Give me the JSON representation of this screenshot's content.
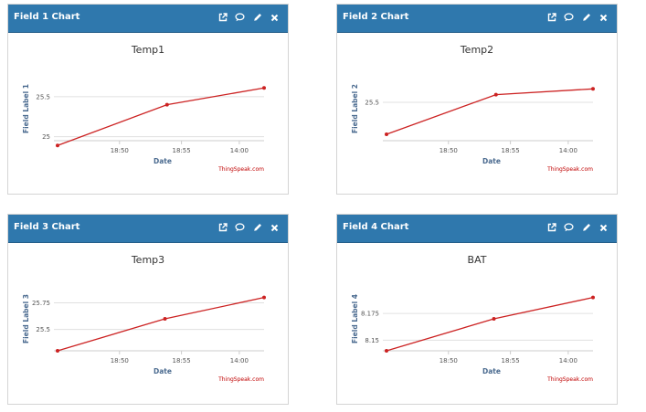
{
  "colors": {
    "header": "#2f78ad",
    "line": "#cc2222",
    "grid": "#e0e0e0",
    "credit": "#c00000"
  },
  "header_icons": [
    "external-link-icon",
    "comment-icon",
    "pencil-icon",
    "close-icon"
  ],
  "widgets": [
    {
      "header_title": "Field 1 Chart",
      "chart_data": {
        "type": "line",
        "title": "Temp1",
        "xlabel": "Date",
        "ylabel": "Field Label 1",
        "credit": "ThingSpeak.com",
        "x_ticks": [
          "18:50",
          "18:55",
          "14:00"
        ],
        "y_ticks": [
          {
            "label": "25",
            "value": 25.0
          },
          {
            "label": "25.5",
            "value": 25.5
          }
        ],
        "ylim": [
          24.95,
          25.75
        ],
        "series": [
          {
            "points": [
              [
                0,
                24.89
              ],
              [
                0.53,
                25.4
              ],
              [
                1,
                25.61
              ]
            ]
          }
        ]
      }
    },
    {
      "header_title": "Field 2 Chart",
      "chart_data": {
        "type": "line",
        "title": "Temp2",
        "xlabel": "Date",
        "ylabel": "Field Label 2",
        "credit": "ThingSpeak.com",
        "x_ticks": [
          "18:50",
          "18:55",
          "14:00"
        ],
        "y_ticks": [
          {
            "label": "25.5",
            "value": 25.5
          }
        ],
        "ylim": [
          24.9,
          25.9
        ],
        "series": [
          {
            "points": [
              [
                0,
                25.0
              ],
              [
                0.53,
                25.62
              ],
              [
                1,
                25.71
              ]
            ]
          }
        ]
      }
    },
    {
      "header_title": "Field 3 Chart",
      "chart_data": {
        "type": "line",
        "title": "Temp3",
        "xlabel": "Date",
        "ylabel": "Field Label 3",
        "credit": "ThingSpeak.com",
        "x_ticks": [
          "18:50",
          "18:55",
          "14:00"
        ],
        "y_ticks": [
          {
            "label": "25.5",
            "value": 25.5
          },
          {
            "label": "25.75",
            "value": 25.75
          }
        ],
        "ylim": [
          25.3,
          25.9
        ],
        "series": [
          {
            "points": [
              [
                0,
                25.3
              ],
              [
                0.52,
                25.6
              ],
              [
                1,
                25.8
              ]
            ]
          }
        ]
      }
    },
    {
      "header_title": "Field 4 Chart",
      "chart_data": {
        "type": "line",
        "title": "BAT",
        "xlabel": "Date",
        "ylabel": "Field Label 4",
        "credit": "ThingSpeak.com",
        "x_ticks": [
          "18:50",
          "18:55",
          "14:00"
        ],
        "y_ticks": [
          {
            "label": "8.15",
            "value": 8.15
          },
          {
            "label": "8.175",
            "value": 8.175
          }
        ],
        "ylim": [
          8.14,
          8.2
        ],
        "series": [
          {
            "points": [
              [
                0,
                8.14
              ],
              [
                0.52,
                8.17
              ],
              [
                1,
                8.19
              ]
            ]
          }
        ]
      }
    }
  ]
}
